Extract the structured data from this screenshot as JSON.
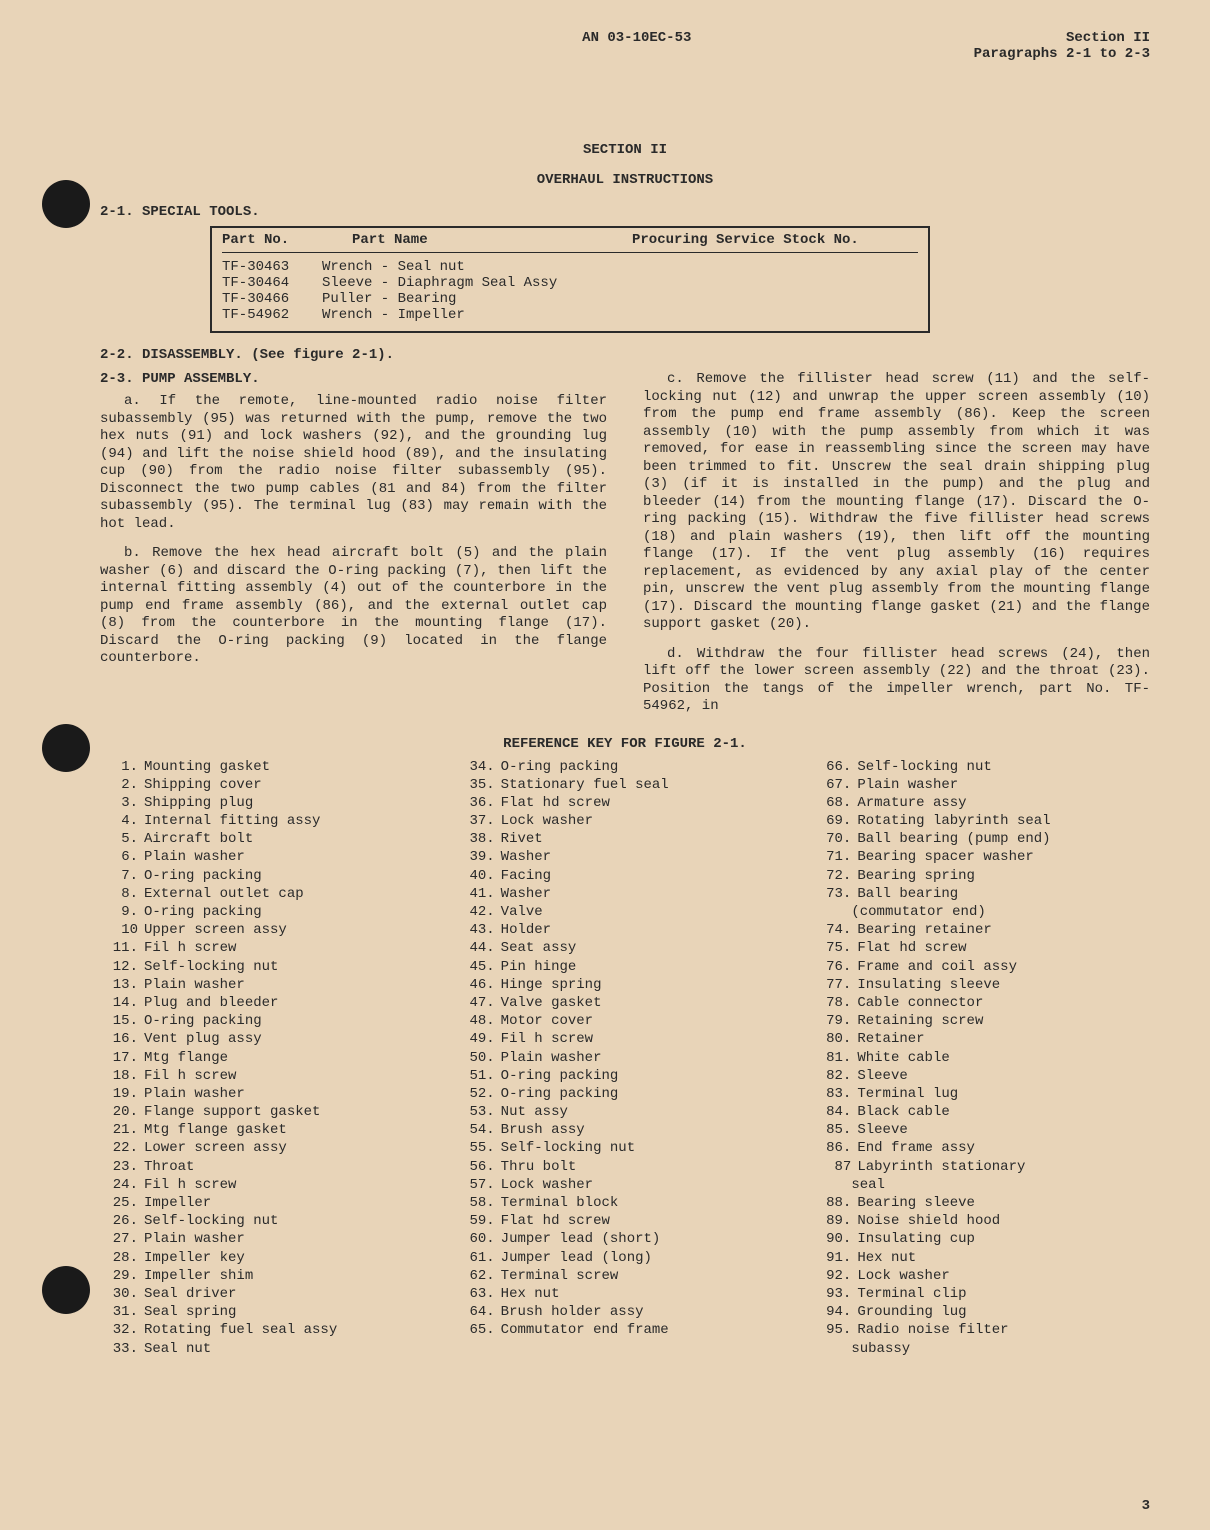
{
  "header": {
    "doc_id": "AN 03-10EC-53",
    "section": "Section II",
    "paragraphs": "Paragraphs 2-1 to 2-3"
  },
  "section_title": "SECTION II",
  "section_subtitle": "OVERHAUL INSTRUCTIONS",
  "h1": "2-1.  SPECIAL TOOLS.",
  "tools": {
    "headers": {
      "c1": "Part No.",
      "c2": "Part Name",
      "c3": "Procuring Service Stock No."
    },
    "rows": [
      {
        "no": "TF-30463",
        "name": "Wrench - Seal nut"
      },
      {
        "no": "TF-30464",
        "name": "Sleeve - Diaphragm Seal Assy"
      },
      {
        "no": "TF-30466",
        "name": "Puller - Bearing"
      },
      {
        "no": "TF-54962",
        "name": "Wrench - Impeller"
      }
    ]
  },
  "h2": "2-2.  DISASSEMBLY.  (See figure 2-1).",
  "h3": "2-3.  PUMP ASSEMBLY.",
  "left": {
    "a": "a. If the remote, line-mounted radio noise filter subassembly (95) was returned with the pump, remove the two hex nuts (91) and lock washers (92), and the grounding lug (94) and lift the noise shield hood (89), and the insulating cup (90) from the radio noise filter subassembly (95).  Disconnect the two pump cables (81 and 84) from the filter subassembly (95).  The terminal lug (83) may remain with the hot lead.",
    "b": "b. Remove the hex head aircraft bolt (5) and the plain washer (6) and discard the O-ring packing (7), then lift the internal fitting assembly (4) out of the counterbore in the pump end frame assembly (86), and the external outlet cap (8) from the counterbore in the mounting flange (17).  Discard the O-ring packing (9) located in the flange counterbore."
  },
  "right": {
    "c": "c. Remove the fillister head screw (11) and the self-locking nut (12) and unwrap the upper screen assembly (10) from the pump end frame assembly (86).  Keep the screen assembly (10) with the pump assembly from which it was removed, for ease in reassembling since the screen may have been trimmed to fit. Unscrew the seal drain shipping plug (3) (if it is installed in the pump) and the plug and bleeder (14) from the mounting flange (17).  Discard the O-ring packing (15). Withdraw the five fillister head screws (18) and plain washers (19), then lift off the mounting flange (17). If the vent plug assembly (16) requires replacement, as evidenced by any axial play of the center pin, unscrew the vent plug assembly from the mounting flange (17). Discard the mounting flange gasket (21) and the flange support gasket (20).",
    "d": "d. Withdraw the four fillister head screws (24), then lift off the lower screen assembly (22) and the throat (23).  Position the tangs of the impeller wrench, part No. TF-54962, in"
  },
  "ref_title": "REFERENCE KEY FOR FIGURE 2-1.",
  "ref": {
    "col1": [
      {
        "n": "1.",
        "t": "Mounting gasket"
      },
      {
        "n": "2.",
        "t": "Shipping cover"
      },
      {
        "n": "3.",
        "t": "Shipping plug"
      },
      {
        "n": "4.",
        "t": "Internal fitting assy"
      },
      {
        "n": "5.",
        "t": "Aircraft bolt"
      },
      {
        "n": "6.",
        "t": "Plain washer"
      },
      {
        "n": "7.",
        "t": "O-ring packing"
      },
      {
        "n": "8.",
        "t": "External outlet cap"
      },
      {
        "n": "9.",
        "t": "O-ring packing"
      },
      {
        "n": "10",
        "t": "Upper screen assy"
      },
      {
        "n": "11.",
        "t": "Fil h screw"
      },
      {
        "n": "12.",
        "t": "Self-locking nut"
      },
      {
        "n": "13.",
        "t": "Plain washer"
      },
      {
        "n": "14.",
        "t": "Plug and bleeder"
      },
      {
        "n": "15.",
        "t": "O-ring packing"
      },
      {
        "n": "16.",
        "t": "Vent plug assy"
      },
      {
        "n": "17.",
        "t": "Mtg flange"
      },
      {
        "n": "18.",
        "t": "Fil h screw"
      },
      {
        "n": "19.",
        "t": "Plain washer"
      },
      {
        "n": "20.",
        "t": "Flange support gasket"
      },
      {
        "n": "21.",
        "t": "Mtg flange gasket"
      },
      {
        "n": "22.",
        "t": "Lower screen assy"
      },
      {
        "n": "23.",
        "t": "Throat"
      },
      {
        "n": "24.",
        "t": "Fil h screw"
      },
      {
        "n": "25.",
        "t": "Impeller"
      },
      {
        "n": "26.",
        "t": "Self-locking nut"
      },
      {
        "n": "27.",
        "t": "Plain washer"
      },
      {
        "n": "28.",
        "t": "Impeller key"
      },
      {
        "n": "29.",
        "t": "Impeller shim"
      },
      {
        "n": "30.",
        "t": "Seal driver"
      },
      {
        "n": "31.",
        "t": "Seal spring"
      },
      {
        "n": "32.",
        "t": "Rotating fuel seal assy"
      },
      {
        "n": "33.",
        "t": "Seal nut"
      }
    ],
    "col2": [
      {
        "n": "34.",
        "t": "O-ring packing"
      },
      {
        "n": "35.",
        "t": "Stationary fuel seal"
      },
      {
        "n": "36.",
        "t": "Flat hd screw"
      },
      {
        "n": "37.",
        "t": "Lock washer"
      },
      {
        "n": "38.",
        "t": "Rivet"
      },
      {
        "n": "39.",
        "t": "Washer"
      },
      {
        "n": "40.",
        "t": "Facing"
      },
      {
        "n": "41.",
        "t": "Washer"
      },
      {
        "n": "42.",
        "t": "Valve"
      },
      {
        "n": "43.",
        "t": "Holder"
      },
      {
        "n": "44.",
        "t": "Seat assy"
      },
      {
        "n": "45.",
        "t": "Pin hinge"
      },
      {
        "n": "46.",
        "t": "Hinge spring"
      },
      {
        "n": "47.",
        "t": "Valve gasket"
      },
      {
        "n": "48.",
        "t": "Motor cover"
      },
      {
        "n": "49.",
        "t": "Fil h screw"
      },
      {
        "n": "50.",
        "t": "Plain washer"
      },
      {
        "n": "51.",
        "t": "O-ring packing"
      },
      {
        "n": "52.",
        "t": "O-ring packing"
      },
      {
        "n": "53.",
        "t": "Nut assy"
      },
      {
        "n": "54.",
        "t": "Brush assy"
      },
      {
        "n": "55.",
        "t": "Self-locking nut"
      },
      {
        "n": "56.",
        "t": "Thru bolt"
      },
      {
        "n": "57.",
        "t": "Lock washer"
      },
      {
        "n": "58.",
        "t": "Terminal block"
      },
      {
        "n": "59.",
        "t": "Flat hd screw"
      },
      {
        "n": "60.",
        "t": "Jumper lead (short)"
      },
      {
        "n": "61.",
        "t": "Jumper lead (long)"
      },
      {
        "n": "62.",
        "t": "Terminal screw"
      },
      {
        "n": "63.",
        "t": "Hex nut"
      },
      {
        "n": "64.",
        "t": "Brush holder assy"
      },
      {
        "n": "65.",
        "t": "Commutator end frame"
      }
    ],
    "col3": [
      {
        "n": "66.",
        "t": "Self-locking nut"
      },
      {
        "n": "67.",
        "t": "Plain washer"
      },
      {
        "n": "68.",
        "t": "Armature assy"
      },
      {
        "n": "69.",
        "t": "Rotating labyrinth seal"
      },
      {
        "n": "70.",
        "t": "Ball bearing (pump end)"
      },
      {
        "n": "71.",
        "t": "Bearing spacer washer"
      },
      {
        "n": "72.",
        "t": "Bearing spring"
      },
      {
        "n": "73.",
        "t": "Ball bearing"
      },
      {
        "n": "",
        "t": "(commutator end)",
        "indent": true
      },
      {
        "n": "74.",
        "t": "Bearing retainer"
      },
      {
        "n": "75.",
        "t": "Flat hd screw"
      },
      {
        "n": "76.",
        "t": "Frame and coil assy"
      },
      {
        "n": "77.",
        "t": "Insulating sleeve"
      },
      {
        "n": "78.",
        "t": "Cable connector"
      },
      {
        "n": "79.",
        "t": "Retaining screw"
      },
      {
        "n": "80.",
        "t": "Retainer"
      },
      {
        "n": "81.",
        "t": "White cable"
      },
      {
        "n": "82.",
        "t": "Sleeve"
      },
      {
        "n": "83.",
        "t": "Terminal lug"
      },
      {
        "n": "84.",
        "t": "Black cable"
      },
      {
        "n": "85.",
        "t": "Sleeve"
      },
      {
        "n": "86.",
        "t": "End frame assy"
      },
      {
        "n": "87",
        "t": "Labyrinth stationary"
      },
      {
        "n": "",
        "t": "seal",
        "indent": true
      },
      {
        "n": "88.",
        "t": "Bearing sleeve"
      },
      {
        "n": "89.",
        "t": "Noise shield hood"
      },
      {
        "n": "90.",
        "t": "Insulating cup"
      },
      {
        "n": "91.",
        "t": "Hex nut"
      },
      {
        "n": "92.",
        "t": "Lock washer"
      },
      {
        "n": "93.",
        "t": "Terminal clip"
      },
      {
        "n": "94.",
        "t": "Grounding lug"
      },
      {
        "n": "95.",
        "t": "Radio noise filter"
      },
      {
        "n": "",
        "t": "subassy",
        "indent": true
      }
    ]
  },
  "page_number": "3"
}
